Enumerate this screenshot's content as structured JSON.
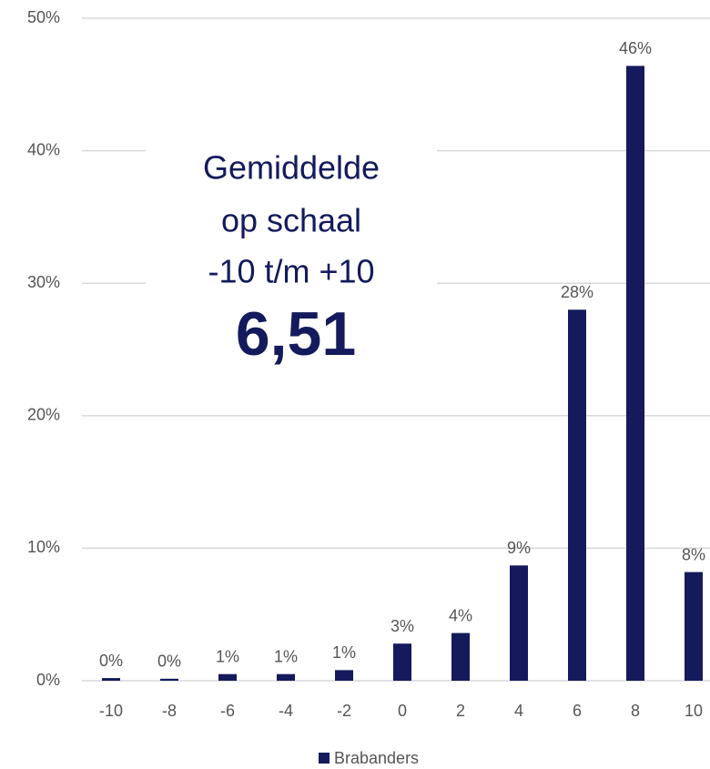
{
  "chart_data": {
    "type": "bar",
    "categories": [
      "-10",
      "-8",
      "-6",
      "-4",
      "-2",
      "0",
      "2",
      "4",
      "6",
      "8",
      "10"
    ],
    "series": [
      {
        "name": "Brabanders",
        "color": "#141a5c",
        "values": [
          0.2,
          0.15,
          0.5,
          0.5,
          0.8,
          2.8,
          3.6,
          8.7,
          28.0,
          46.4,
          8.2
        ],
        "value_labels": [
          "0%",
          "0%",
          "1%",
          "1%",
          "1%",
          "3%",
          "4%",
          "9%",
          "28%",
          "46%",
          "8%"
        ]
      }
    ],
    "ylim": [
      0,
      50
    ],
    "yticks": [
      {
        "value": 0,
        "label": "0%"
      },
      {
        "value": 10,
        "label": "10%"
      },
      {
        "value": 20,
        "label": "20%"
      },
      {
        "value": 30,
        "label": "30%"
      },
      {
        "value": 40,
        "label": "40%"
      },
      {
        "value": 50,
        "label": "50%"
      }
    ],
    "grid": true,
    "legend": "bottom",
    "annotations": [
      "Gemiddelde",
      "op schaal",
      "-10 t/m +10",
      "6,51"
    ]
  }
}
